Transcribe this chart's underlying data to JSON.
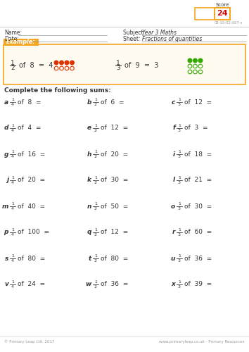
{
  "score_label": "Score",
  "score_value": "24",
  "score_code": "03-15-02-007-s",
  "name_label": "Name:",
  "date_label": "Date:",
  "subject_label": "Subject:",
  "subject_value": "Year 3 Maths",
  "sheet_label": "Sheet:",
  "sheet_value": "Fractions of quantities",
  "example_label": "Example:",
  "instruction": "Complete the following sums:",
  "problems": [
    {
      "letter": "a",
      "num": 1,
      "den": 4,
      "of": 8,
      "col": 0,
      "row": 0
    },
    {
      "letter": "b",
      "num": 1,
      "den": 2,
      "of": 6,
      "col": 1,
      "row": 0
    },
    {
      "letter": "c",
      "num": 1,
      "den": 3,
      "of": 12,
      "col": 2,
      "row": 0
    },
    {
      "letter": "d",
      "num": 1,
      "den": 4,
      "of": 4,
      "col": 0,
      "row": 1
    },
    {
      "letter": "e",
      "num": 1,
      "den": 2,
      "of": 12,
      "col": 1,
      "row": 1
    },
    {
      "letter": "f",
      "num": 1,
      "den": 3,
      "of": 3,
      "col": 2,
      "row": 1
    },
    {
      "letter": "g",
      "num": 1,
      "den": 4,
      "of": 16,
      "col": 0,
      "row": 2
    },
    {
      "letter": "h",
      "num": 1,
      "den": 2,
      "of": 20,
      "col": 1,
      "row": 2
    },
    {
      "letter": "i",
      "num": 1,
      "den": 3,
      "of": 18,
      "col": 2,
      "row": 2
    },
    {
      "letter": "j",
      "num": 1,
      "den": 4,
      "of": 20,
      "col": 0,
      "row": 3
    },
    {
      "letter": "k",
      "num": 1,
      "den": 2,
      "of": 30,
      "col": 1,
      "row": 3
    },
    {
      "letter": "l",
      "num": 1,
      "den": 3,
      "of": 21,
      "col": 2,
      "row": 3
    },
    {
      "letter": "m",
      "num": 1,
      "den": 4,
      "of": 40,
      "col": 0,
      "row": 4
    },
    {
      "letter": "n",
      "num": 1,
      "den": 2,
      "of": 50,
      "col": 1,
      "row": 4
    },
    {
      "letter": "o",
      "num": 1,
      "den": 3,
      "of": 30,
      "col": 2,
      "row": 4
    },
    {
      "letter": "p",
      "num": 1,
      "den": 4,
      "of": 100,
      "col": 0,
      "row": 5
    },
    {
      "letter": "q",
      "num": 1,
      "den": 2,
      "of": 12,
      "col": 1,
      "row": 5
    },
    {
      "letter": "r",
      "num": 1,
      "den": 3,
      "of": 60,
      "col": 2,
      "row": 5
    },
    {
      "letter": "s",
      "num": 1,
      "den": 4,
      "of": 80,
      "col": 0,
      "row": 6
    },
    {
      "letter": "t",
      "num": 1,
      "den": 2,
      "of": 80,
      "col": 1,
      "row": 6
    },
    {
      "letter": "u",
      "num": 1,
      "den": 3,
      "of": 36,
      "col": 2,
      "row": 6
    },
    {
      "letter": "v",
      "num": 1,
      "den": 4,
      "of": 24,
      "col": 0,
      "row": 7
    },
    {
      "letter": "w",
      "num": 1,
      "den": 2,
      "of": 36,
      "col": 1,
      "row": 7
    },
    {
      "letter": "x",
      "num": 1,
      "den": 3,
      "of": 39,
      "col": 2,
      "row": 7
    }
  ],
  "footer_left": "© Primary Leap Ltd. 2017",
  "footer_right": "www.primaryleap.co.uk - Primary Resources",
  "orange": "#F5A623",
  "red_score": "#CC0000",
  "dark_text": "#333333",
  "gray_text": "#999999",
  "light_gray": "#cccccc",
  "bg": "#ffffff",
  "ex_bg": "#FFFBF0",
  "dot_red": "#DD3300",
  "dot_green": "#33AA00"
}
